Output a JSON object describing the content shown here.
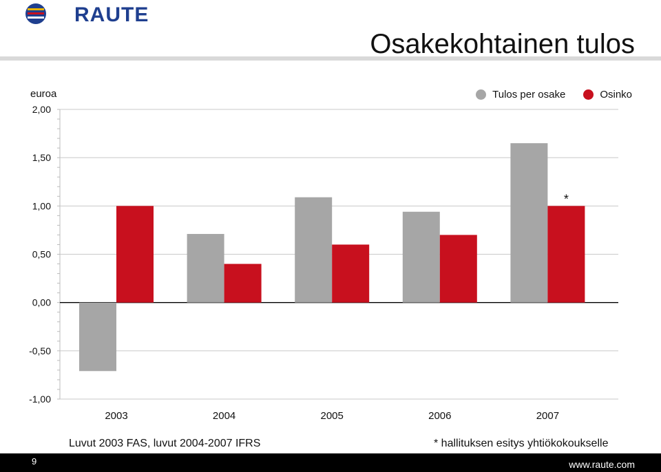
{
  "logo": {
    "text": "RAUTE",
    "color": "#1f3f8f"
  },
  "title": "Osakekohtainen tulos",
  "unit_label": "euroa",
  "footnotes": {
    "left": "Luvut 2003 FAS, luvut 2004-2007 IFRS",
    "right": "* hallituksen esitys yhtiökokoukselle"
  },
  "footer": {
    "page_number": "9",
    "url": "www.raute.com"
  },
  "chart_data": {
    "type": "bar",
    "categories": [
      "2003",
      "2004",
      "2005",
      "2006",
      "2007"
    ],
    "series": [
      {
        "name": "Tulos per osake",
        "color": "#a6a6a6",
        "values": [
          -0.71,
          0.71,
          1.09,
          0.94,
          1.65
        ]
      },
      {
        "name": "Osinko",
        "color": "#c8101e",
        "values": [
          1.0,
          0.4,
          0.6,
          0.7,
          1.0
        ]
      }
    ],
    "ylim": [
      -1.0,
      2.0
    ],
    "yticks": [
      -1.0,
      -0.5,
      0.0,
      0.5,
      1.0,
      1.5,
      2.0
    ],
    "ytick_labels": [
      "-1,00",
      "-0,50",
      "0,00",
      "0,50",
      "1,00",
      "1,50",
      "2,00"
    ],
    "annotations": [
      {
        "category": "2007",
        "series": "Osinko",
        "text": "*"
      }
    ],
    "grid": true,
    "legend_position": "top-right"
  }
}
